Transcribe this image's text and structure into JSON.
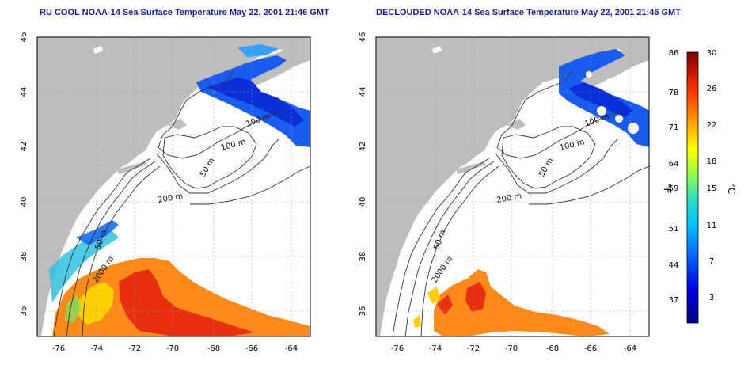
{
  "panels": [
    {
      "id": "left",
      "title": "RU COOL NOAA-14 Sea Surface Temperature May 22, 2001 21:46 GMT"
    },
    {
      "id": "right",
      "title": "DECLOUDED NOAA-14 Sea Surface Temperature May 22, 2001 21:46 GMT"
    }
  ],
  "map": {
    "lon_ticks": [
      "-76",
      "-74",
      "-72",
      "-70",
      "-68",
      "-66",
      "-64"
    ],
    "lat_ticks": [
      "46",
      "44",
      "42",
      "40",
      "38",
      "36"
    ],
    "lon_range": [
      -77,
      -63
    ],
    "lat_range": [
      35,
      46
    ],
    "land_color": "#bdbdbd",
    "water_color": "#ffffff",
    "contour_labels": {
      "left": [
        "100 m",
        "100 m",
        "50 m",
        "200 m",
        "50 m",
        "2000 m"
      ],
      "right": [
        "100 m",
        "100 m",
        "50 m",
        "200 m",
        "50 m",
        "2000 m"
      ]
    }
  },
  "colorbar": {
    "fahrenheit_label": "°F",
    "celsius_label": "°C",
    "fahrenheit_ticks": [
      "86",
      "78",
      "71",
      "64",
      "59",
      "51",
      "44",
      "37"
    ],
    "celsius_ticks": [
      "30",
      "26",
      "22",
      "18",
      "15",
      "11",
      "7",
      "3"
    ],
    "colors": [
      "#000080",
      "#0000d0",
      "#0050ff",
      "#00a0ff",
      "#00e0e0",
      "#40ff80",
      "#c0ff20",
      "#ffe000",
      "#ff9000",
      "#ff3000",
      "#c00000",
      "#800000"
    ]
  }
}
